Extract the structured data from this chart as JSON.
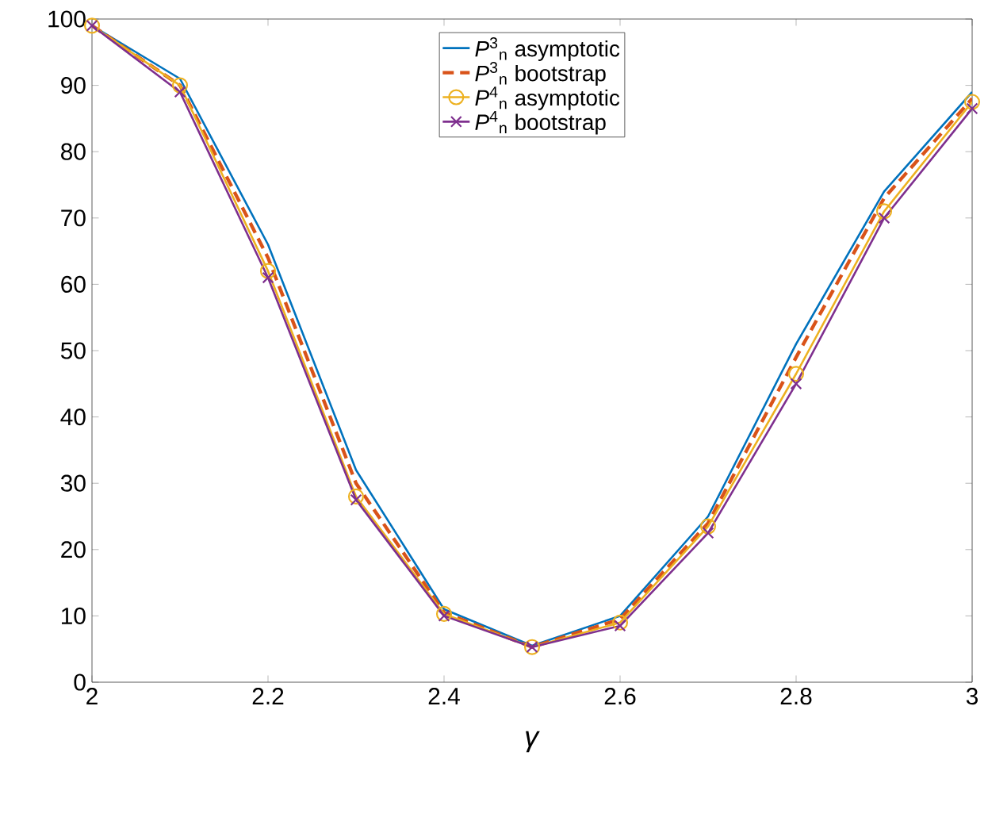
{
  "chart_data": {
    "type": "line",
    "xlabel": "*γ*",
    "x": [
      2,
      2.1,
      2.2,
      2.3,
      2.4,
      2.5,
      2.6,
      2.7,
      2.8,
      2.9,
      3
    ],
    "xlim": [
      2,
      3
    ],
    "xticks": [
      2,
      2.2,
      2.4,
      2.6,
      2.8,
      3
    ],
    "ylim": [
      0,
      100
    ],
    "yticks": [
      0,
      10,
      20,
      30,
      40,
      50,
      60,
      70,
      80,
      90,
      100
    ],
    "grid": false,
    "legend": "top",
    "series": [
      {
        "name": "*P*$^{3}$$_{n}$ asymptotic",
        "color": "#0072bd",
        "line_style": "solid",
        "marker": "none",
        "values": [
          99,
          91,
          66,
          32,
          11,
          5.5,
          10,
          25,
          51,
          74,
          89
        ]
      },
      {
        "name": "*P*$^{3}$$_{n}$ bootstrap",
        "color": "#d95319",
        "line_style": "dashed",
        "marker": "none",
        "values": [
          99,
          90,
          64,
          30,
          10.5,
          5.3,
          9.5,
          24,
          49,
          73,
          88
        ]
      },
      {
        "name": "*P*$^{4}$$_{n}$ asymptotic",
        "color": "#edb120",
        "line_style": "solid",
        "marker": "circle",
        "values": [
          99,
          90,
          62,
          28,
          10.3,
          5.3,
          9,
          23.5,
          46.5,
          71,
          87.5
        ]
      },
      {
        "name": "*P*$^{4}$$_{n}$ bootstrap",
        "color": "#7e2f8e",
        "line_style": "solid",
        "marker": "cross",
        "values": [
          99,
          89,
          61,
          27.5,
          10,
          5.3,
          8.5,
          22.5,
          45,
          70,
          86.5
        ]
      }
    ]
  }
}
